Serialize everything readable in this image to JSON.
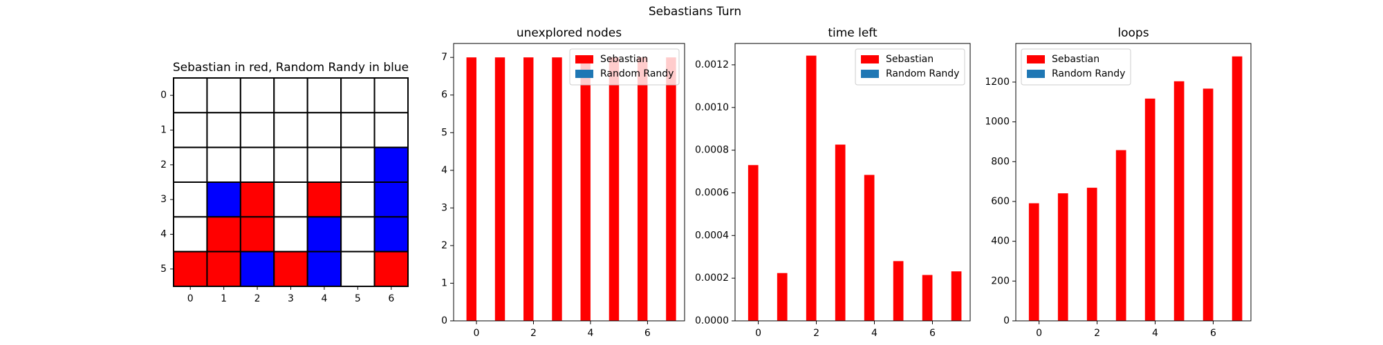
{
  "title": "Sebastians Turn",
  "chart_data": [
    {
      "type": "board",
      "title": "Sebastian in red, Random Randy in blue",
      "cells": [
        [
          "white",
          "white",
          "white",
          "white",
          "white",
          "white",
          "white"
        ],
        [
          "white",
          "white",
          "white",
          "white",
          "white",
          "white",
          "white"
        ],
        [
          "white",
          "white",
          "white",
          "white",
          "white",
          "white",
          "blue"
        ],
        [
          "white",
          "blue",
          "red",
          "white",
          "red",
          "white",
          "blue"
        ],
        [
          "white",
          "red",
          "red",
          "white",
          "blue",
          "white",
          "blue"
        ],
        [
          "red",
          "red",
          "blue",
          "red",
          "blue",
          "white",
          "red"
        ]
      ],
      "xticks": [
        0,
        1,
        2,
        3,
        4,
        5,
        6
      ],
      "yticks": [
        0,
        1,
        2,
        3,
        4,
        5
      ]
    },
    {
      "type": "bar",
      "title": "unexplored nodes",
      "x": [
        0,
        1,
        2,
        3,
        4,
        5,
        6,
        7
      ],
      "series": [
        {
          "name": "Sebastian",
          "color": "#ff0000",
          "values": [
            7,
            7,
            7,
            7,
            7,
            7,
            7,
            7
          ]
        },
        {
          "name": "Random Randy",
          "color": "#1f77b4",
          "values": [
            0,
            0,
            0,
            0,
            0,
            0,
            0,
            0
          ]
        }
      ],
      "xlim": [
        -0.8,
        7.3
      ],
      "xticks": [
        0,
        2,
        4,
        6
      ],
      "ylim": [
        0,
        7.37
      ],
      "yticks": [
        0,
        1,
        2,
        3,
        4,
        5,
        6,
        7
      ],
      "legend": "upper right"
    },
    {
      "type": "bar",
      "title": "time left",
      "x": [
        0,
        1,
        2,
        3,
        4,
        5,
        6,
        7
      ],
      "series": [
        {
          "name": "Sebastian",
          "color": "#ff0000",
          "values": [
            0.00073,
            0.000224,
            0.001243,
            0.000826,
            0.000684,
            0.00028,
            0.000215,
            0.000232
          ]
        },
        {
          "name": "Random Randy",
          "color": "#1f77b4",
          "values": [
            0,
            0,
            0,
            0,
            0,
            0,
            0,
            0
          ]
        }
      ],
      "xlim": [
        -0.8,
        7.3
      ],
      "xticks": [
        0,
        2,
        4,
        6
      ],
      "ylim": [
        0,
        0.0013
      ],
      "yticks": [
        {
          "value": 0,
          "label": "0.0000"
        },
        {
          "value": 0.0002,
          "label": "0.0002"
        },
        {
          "value": 0.0004,
          "label": "0.0004"
        },
        {
          "value": 0.0006,
          "label": "0.0006"
        },
        {
          "value": 0.0008,
          "label": "0.0008"
        },
        {
          "value": 0.001,
          "label": "0.0010"
        },
        {
          "value": 0.0012,
          "label": "0.0012"
        }
      ],
      "legend": "upper right"
    },
    {
      "type": "bar",
      "title": "loops",
      "x": [
        0,
        1,
        2,
        3,
        4,
        5,
        6,
        7
      ],
      "series": [
        {
          "name": "Sebastian",
          "color": "#ff0000",
          "values": [
            591,
            641,
            669,
            858,
            1117,
            1204,
            1167,
            1329
          ]
        },
        {
          "name": "Random Randy",
          "color": "#1f77b4",
          "values": [
            0,
            0,
            0,
            0,
            0,
            0,
            0,
            0
          ]
        }
      ],
      "xlim": [
        -0.8,
        7.3
      ],
      "xticks": [
        0,
        2,
        4,
        6
      ],
      "ylim": [
        0,
        1394
      ],
      "yticks": [
        0,
        200,
        400,
        600,
        800,
        1000,
        1200
      ],
      "legend": "upper left"
    }
  ]
}
